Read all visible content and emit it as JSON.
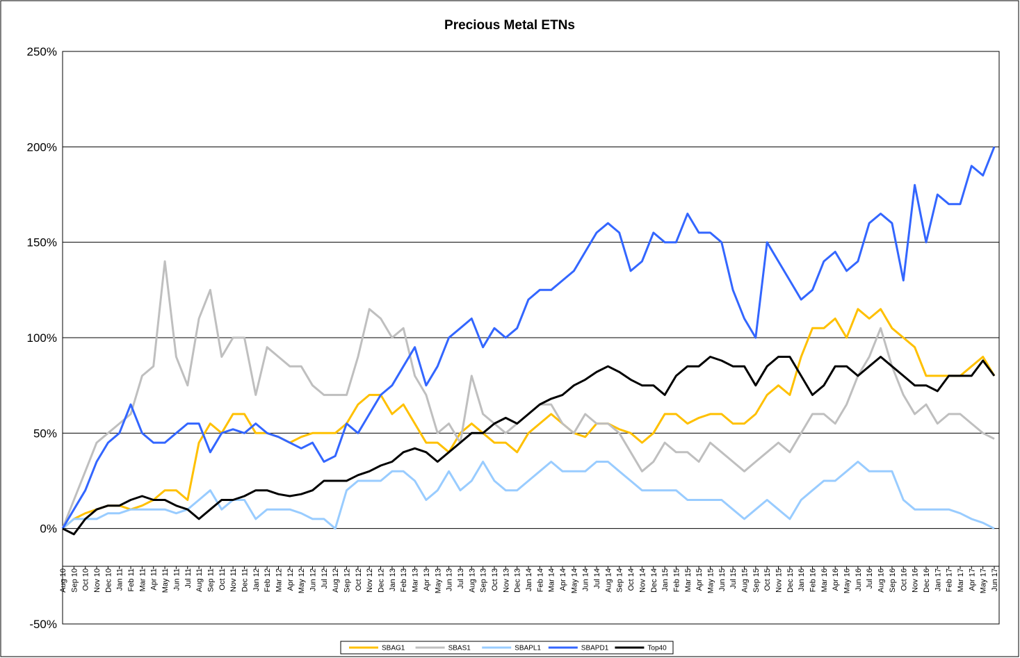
{
  "chart_data": {
    "type": "line",
    "title": "Precious Metal ETNs",
    "categories": [
      "Aug 10",
      "Sep 10",
      "Oct 10",
      "Nov 10",
      "Dec 10",
      "Jan 11",
      "Feb 11",
      "Mar 11",
      "Apr 11",
      "May 11",
      "Jun 11",
      "Jul 11",
      "Aug 11",
      "Sep 11",
      "Oct 11",
      "Nov 11",
      "Dec 11",
      "Jan 12",
      "Feb 12",
      "Mar 12",
      "Apr 12",
      "May 12",
      "Jun 12",
      "Jul 12",
      "Aug 12",
      "Sep 12",
      "Oct 12",
      "Nov 12",
      "Dec 12",
      "Jan 13",
      "Feb 13",
      "Mar 13",
      "Apr 13",
      "May 13",
      "Jun 13",
      "Jul 13",
      "Aug 13",
      "Sep 13",
      "Oct 13",
      "Nov 13",
      "Dec 13",
      "Jan 14",
      "Feb 14",
      "Mar 14",
      "Apr 14",
      "May 14",
      "Jun 14",
      "Jul 14",
      "Aug 14",
      "Sep 14",
      "Oct 14",
      "Nov 14",
      "Dec 14",
      "Jan 15",
      "Feb 15",
      "Mar 15",
      "Apr 15",
      "May 15",
      "Jun 15",
      "Jul 15",
      "Aug 15",
      "Sep 15",
      "Oct 15",
      "Nov 15",
      "Dec 15",
      "Jan 16",
      "Feb 16",
      "Mar 16",
      "Apr 16",
      "May 16",
      "Jun 16",
      "Jul 16",
      "Aug 16",
      "Sep 16",
      "Oct 16",
      "Nov 16",
      "Dec 16",
      "Jan 17",
      "Feb 17",
      "Mar 17",
      "Apr 17",
      "May 17",
      "Jun 17"
    ],
    "series": [
      {
        "name": "SBAG1",
        "color": "#ffc000",
        "values": [
          0,
          5,
          8,
          10,
          12,
          12,
          10,
          12,
          15,
          20,
          20,
          15,
          45,
          55,
          50,
          60,
          60,
          50,
          50,
          48,
          45,
          48,
          50,
          50,
          50,
          55,
          65,
          70,
          70,
          60,
          65,
          55,
          45,
          45,
          40,
          50,
          55,
          50,
          45,
          45,
          40,
          50,
          55,
          60,
          55,
          50,
          48,
          55,
          55,
          52,
          50,
          45,
          50,
          60,
          60,
          55,
          58,
          60,
          60,
          55,
          55,
          60,
          70,
          75,
          70,
          90,
          105,
          105,
          110,
          100,
          115,
          110,
          115,
          105,
          100,
          95,
          80,
          80,
          80,
          80,
          85,
          90,
          80
        ]
      },
      {
        "name": "SBAS1",
        "color": "#bfbfbf",
        "values": [
          0,
          15,
          30,
          45,
          50,
          55,
          60,
          80,
          85,
          140,
          90,
          75,
          110,
          125,
          90,
          100,
          100,
          70,
          95,
          90,
          85,
          85,
          75,
          70,
          70,
          70,
          90,
          115,
          110,
          100,
          105,
          80,
          70,
          50,
          55,
          45,
          80,
          60,
          55,
          50,
          55,
          60,
          65,
          65,
          55,
          50,
          60,
          55,
          55,
          50,
          40,
          30,
          35,
          45,
          40,
          40,
          35,
          45,
          40,
          35,
          30,
          35,
          40,
          45,
          40,
          50,
          60,
          60,
          55,
          65,
          80,
          90,
          105,
          85,
          70,
          60,
          65,
          55,
          60,
          60,
          55,
          50,
          47
        ]
      },
      {
        "name": "SBAPL1",
        "color": "#99ccff",
        "values": [
          0,
          5,
          5,
          5,
          8,
          8,
          10,
          10,
          10,
          10,
          8,
          10,
          15,
          20,
          10,
          15,
          15,
          5,
          10,
          10,
          10,
          8,
          5,
          5,
          0,
          20,
          25,
          25,
          25,
          30,
          30,
          25,
          15,
          20,
          30,
          20,
          25,
          35,
          25,
          20,
          20,
          25,
          30,
          35,
          30,
          30,
          30,
          35,
          35,
          30,
          25,
          20,
          20,
          20,
          20,
          15,
          15,
          15,
          15,
          10,
          5,
          10,
          15,
          10,
          5,
          15,
          20,
          25,
          25,
          30,
          35,
          30,
          30,
          30,
          15,
          10,
          10,
          10,
          10,
          8,
          5,
          3,
          0
        ]
      },
      {
        "name": "SBAPD1",
        "color": "#3366ff",
        "values": [
          0,
          10,
          20,
          35,
          45,
          50,
          65,
          50,
          45,
          45,
          50,
          55,
          55,
          40,
          50,
          52,
          50,
          55,
          50,
          48,
          45,
          42,
          45,
          35,
          38,
          55,
          50,
          60,
          70,
          75,
          85,
          95,
          75,
          85,
          100,
          105,
          110,
          95,
          105,
          100,
          105,
          120,
          125,
          125,
          130,
          135,
          145,
          155,
          160,
          155,
          135,
          140,
          155,
          150,
          150,
          165,
          155,
          155,
          150,
          125,
          110,
          100,
          150,
          140,
          130,
          120,
          125,
          140,
          145,
          135,
          140,
          160,
          165,
          160,
          130,
          180,
          150,
          175,
          170,
          170,
          190,
          185,
          200
        ]
      },
      {
        "name": "Top40",
        "color": "#000000",
        "values": [
          0,
          -3,
          5,
          10,
          12,
          12,
          15,
          17,
          15,
          15,
          12,
          10,
          5,
          10,
          15,
          15,
          17,
          20,
          20,
          18,
          17,
          18,
          20,
          25,
          25,
          25,
          28,
          30,
          33,
          35,
          40,
          42,
          40,
          35,
          40,
          45,
          50,
          50,
          55,
          58,
          55,
          60,
          65,
          68,
          70,
          75,
          78,
          82,
          85,
          82,
          78,
          75,
          75,
          70,
          80,
          85,
          85,
          90,
          88,
          85,
          85,
          75,
          85,
          90,
          90,
          80,
          70,
          75,
          85,
          85,
          80,
          85,
          90,
          85,
          80,
          75,
          75,
          72,
          80,
          80,
          80,
          88,
          80
        ]
      }
    ],
    "ylim": [
      -50,
      250
    ],
    "yticks": [
      {
        "value": -50,
        "label": "-50%"
      },
      {
        "value": 0,
        "label": "0%"
      },
      {
        "value": 50,
        "label": "50%"
      },
      {
        "value": 100,
        "label": "100%"
      },
      {
        "value": 150,
        "label": "150%"
      },
      {
        "value": 200,
        "label": "200%"
      },
      {
        "value": 250,
        "label": "250%"
      }
    ],
    "grid": true,
    "legend": "bottom"
  }
}
